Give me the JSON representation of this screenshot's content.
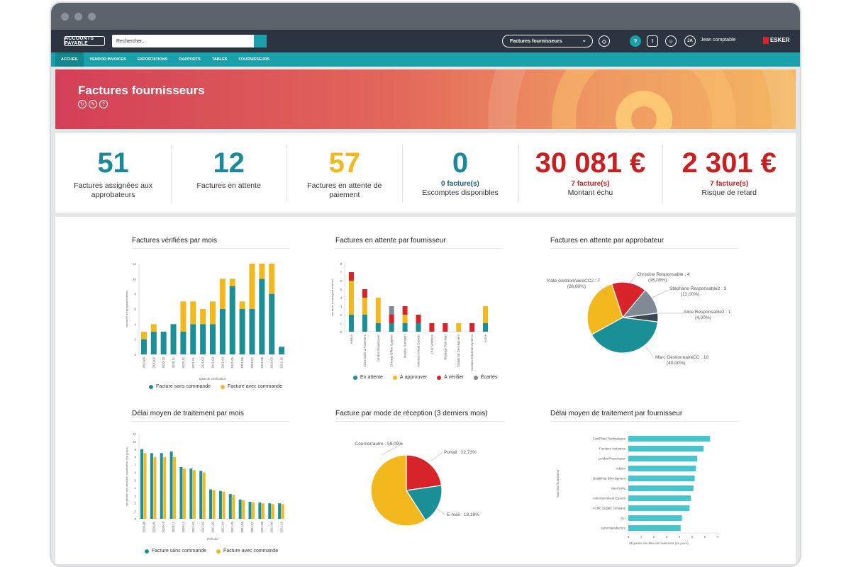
{
  "app": {
    "search_placeholder": "Rechercher...",
    "logo_text": "ACCOUNTS PAYABLE",
    "dropdown_value": "Factures fournisseurs",
    "user_initials": "JA",
    "user_name": "Jean comptable",
    "brand": "ESKER"
  },
  "nav": {
    "items": [
      "ACCUEIL",
      "VENDOR INVOICES",
      "EXPORTATIONS",
      "RAPPORTS",
      "TABLES",
      "FOURNISSEURS"
    ]
  },
  "hero": {
    "title": "Factures fournisseurs"
  },
  "kpis": [
    {
      "value": "51",
      "sub": "",
      "label": "Factures assignées aux approbateurs"
    },
    {
      "value": "12",
      "sub": "",
      "label": "Factures en attente"
    },
    {
      "value": "57",
      "sub": "",
      "label": "Factures en attente de paiement"
    },
    {
      "value": "0",
      "sub": "0 facture(s)",
      "label": "Escomptes disponibles"
    },
    {
      "value": "30 081 €",
      "sub": "7 facture(s)",
      "label": "Montant échu"
    },
    {
      "value": "2 301 €",
      "sub": "7 facture(s)",
      "label": "Risque de retard"
    }
  ],
  "colors": {
    "teal": "#1a8f95",
    "yellow": "#f2b81e",
    "red": "#d8232a",
    "gray": "#7f8a94",
    "kpi_teal": "#1a8a9a",
    "kpi_yellow": "#f2b81e",
    "kpi_red": "#c82020",
    "bar_cyan": "#44c6cf"
  },
  "chart_data": [
    {
      "type": "bar",
      "title": "Factures vérifiées par mois",
      "ylabel": "Nombre d'enregistrements",
      "xlabel": "Date de vérification",
      "ylim": [
        0,
        12
      ],
      "yticks": [
        0,
        2,
        4,
        6,
        8,
        10,
        12
      ],
      "categories": [
        "2020-08",
        "2020-09",
        "2020-10",
        "2020-11",
        "2020-12",
        "2021-01",
        "2021-02",
        "2021-03",
        "2021-04",
        "2021-05",
        "2021-06",
        "2021-07",
        "2021-08",
        "2021-09",
        "2021-10"
      ],
      "series": [
        {
          "name": "Facture sans commande",
          "values": [
            2,
            3,
            3,
            4,
            3,
            4,
            4,
            4,
            6,
            9,
            6,
            6,
            10,
            8,
            1
          ]
        },
        {
          "name": "Facture avec commande",
          "values": [
            1,
            1,
            0,
            0,
            4,
            3,
            2,
            3,
            4,
            1,
            1,
            6,
            2,
            4,
            0
          ]
        }
      ],
      "stacked": true
    },
    {
      "type": "bar",
      "title": "Factures en attente par fournisseur",
      "ylabel": "Nombre d'enregistrements",
      "ylim": [
        0,
        8
      ],
      "yticks": [
        0,
        1,
        2,
        3,
        4,
        5,
        6,
        7,
        8
      ],
      "categories": [
        "Adeum",
        "Acme Bolts & Fasteners",
        "London Powersaver",
        "Chicago Office Supplies",
        "Natalie Transport",
        "American Wood Exports",
        "Oral Solutions",
        "Bigstage Tool Mart",
        "Godalimat Dévelopment",
        "Custom Industrial Systems",
        "Acme"
      ],
      "series": [
        {
          "name": "En attente",
          "values": [
            2,
            2,
            1,
            1,
            1,
            1,
            0,
            0,
            0,
            0,
            1
          ]
        },
        {
          "name": "À approuver",
          "values": [
            4,
            2,
            3,
            0,
            1,
            0,
            0,
            0,
            1,
            0,
            2
          ]
        },
        {
          "name": "À vérifier",
          "values": [
            1,
            1,
            0,
            1,
            1,
            1,
            1,
            1,
            0,
            1,
            0
          ]
        },
        {
          "name": "Écartés",
          "values": [
            0,
            0,
            0,
            1,
            0,
            0,
            0,
            0,
            0,
            0,
            0
          ]
        }
      ],
      "stacked": true
    },
    {
      "type": "pie",
      "title": "Factures en attente par approbateur",
      "slices": [
        {
          "label": "Christine Responsable : 4 (16,00%)",
          "value": 16
        },
        {
          "label": "Stéphane Responsable2 : 3 (12,00%)",
          "value": 12
        },
        {
          "label": "Alice Responsable2 : 1 (4,00%)",
          "value": 4
        },
        {
          "label": "Marc GestionnaireCC : 10 (40,00%)",
          "value": 40
        },
        {
          "label": "Kate GestionnaireCC2 : 7 (28,00%)",
          "value": 28
        }
      ]
    },
    {
      "type": "bar",
      "title": "Délai moyen de traitement par mois",
      "ylabel": "Moyenne de délai de traitement (en jours)",
      "xlabel": "Période",
      "ylim": [
        0,
        11
      ],
      "yticks": [
        0,
        1,
        2,
        3,
        4,
        5,
        6,
        7,
        8,
        9,
        10,
        11
      ],
      "categories": [
        "2020-08",
        "2020-09",
        "2020-10",
        "2020-11",
        "2020-12",
        "2021-01",
        "2021-02",
        "2021-03",
        "2021-04",
        "2021-05",
        "2021-06",
        "2021-07",
        "2021-08",
        "2021-09",
        "2021-10"
      ],
      "series": [
        {
          "name": "Facture sans commande",
          "values": [
            9,
            8.5,
            8.5,
            8.7,
            6.7,
            6.5,
            6.2,
            3.8,
            3.6,
            3.2,
            2.5,
            2.2,
            2.1,
            2,
            2
          ]
        },
        {
          "name": "Facture avec commande",
          "values": [
            8.5,
            8,
            8,
            8,
            6.5,
            6.3,
            6,
            3.7,
            3.5,
            3.1,
            2.4,
            2.1,
            2,
            1.9,
            1.9
          ]
        }
      ],
      "stacked": false
    },
    {
      "type": "pie",
      "title": "Facture par mode de réception (3 derniers mois)",
      "slices": [
        {
          "label": "Portail : 22,73%",
          "value": 22.73
        },
        {
          "label": "E-mail : 18,18%",
          "value": 18.18
        },
        {
          "label": "Courrier/autre : 59,09%",
          "value": 59.09
        }
      ]
    },
    {
      "type": "bar",
      "orientation": "horizontal",
      "title": "Délai moyen de traitement par fournisseur",
      "ylabel": "Nom du fournisseur",
      "xlabel": "Moyenne de délai de traitement (en jours)",
      "xlim": [
        0,
        7
      ],
      "xticks": [
        0,
        1,
        2,
        3,
        4,
        5,
        6,
        7
      ],
      "categories": [
        "CoolPhoto Technologies",
        "Furniture Industries",
        "London Powersaver",
        "Adeum",
        "Godalimat Dévelopment",
        "NaroSolve",
        "American Wood Exports",
        "ACME Supply Company",
        "SLI",
        "Sumi Manufacture"
      ],
      "values": [
        6.4,
        5.9,
        5.4,
        5.3,
        5.2,
        5.1,
        4.9,
        4.8,
        4.2,
        4.1
      ]
    }
  ]
}
